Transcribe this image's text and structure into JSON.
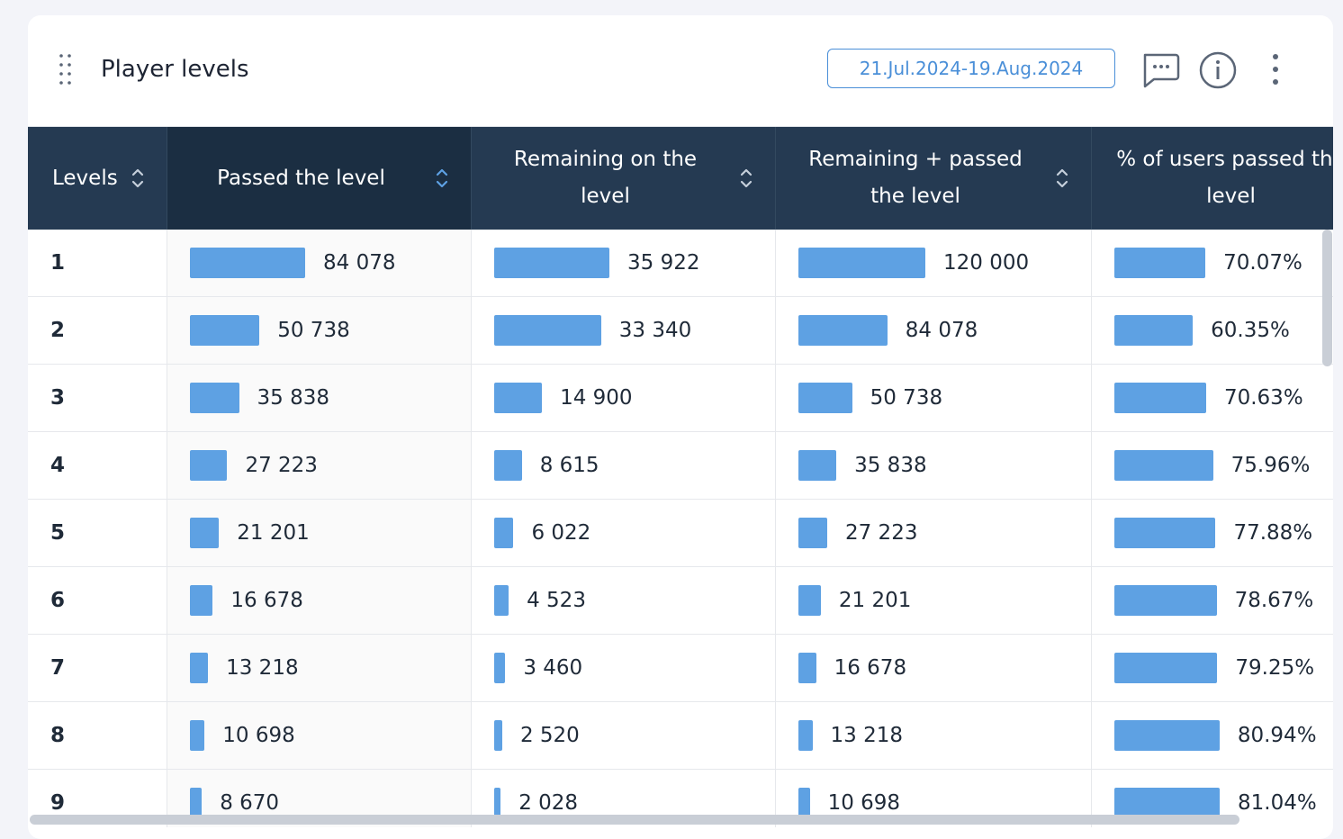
{
  "header": {
    "title": "Player levels",
    "date_range": "21.Jul.2024-19.Aug.2024"
  },
  "table": {
    "level_header": "Levels",
    "levels": [
      1,
      2,
      3,
      4,
      5,
      6,
      7,
      8,
      9
    ],
    "columns": [
      {
        "header": "Passed the level",
        "values": [
          84078,
          50738,
          35838,
          27223,
          21201,
          16678,
          13218,
          10698,
          8670
        ],
        "value_labels": [
          "84 078",
          "50 738",
          "35 838",
          "27 223",
          "21 201",
          "16 678",
          "13 218",
          "10 698",
          "8 670"
        ]
      },
      {
        "header": "Remaining on the level",
        "values": [
          35922,
          33340,
          14900,
          8615,
          6022,
          4523,
          3460,
          2520,
          2028
        ],
        "value_labels": [
          "35 922",
          "33 340",
          "14 900",
          "8 615",
          "6 022",
          "4 523",
          "3 460",
          "2 520",
          "2 028"
        ]
      },
      {
        "header": "Remaining + passed the level",
        "values": [
          120000,
          84078,
          50738,
          35838,
          27223,
          21201,
          16678,
          13218,
          10698
        ],
        "value_labels": [
          "120 000",
          "84 078",
          "50 738",
          "35 838",
          "27 223",
          "21 201",
          "16 678",
          "13 218",
          "10 698"
        ]
      },
      {
        "header": "% of users passed the level",
        "values": [
          70.07,
          60.35,
          70.63,
          75.96,
          77.88,
          78.67,
          79.25,
          80.94,
          81.04
        ],
        "value_labels": [
          "70.07%",
          "60.35%",
          "70.63%",
          "75.96%",
          "77.88%",
          "78.67%",
          "79.25%",
          "80.94%",
          "81.04%"
        ]
      }
    ]
  }
}
